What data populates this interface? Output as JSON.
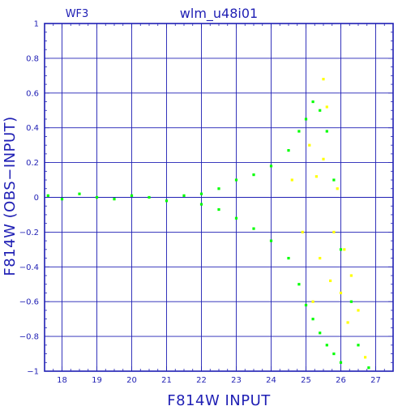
{
  "chart_data": {
    "type": "scatter",
    "title": "wlm_u48i01",
    "panel_label": "WF3",
    "xlabel": "F814W  INPUT",
    "ylabel": "F814W  (OBS−INPUT)",
    "xlim": [
      17.5,
      27.5
    ],
    "ylim": [
      -1,
      1
    ],
    "x_ticks": [
      18,
      19,
      20,
      21,
      22,
      23,
      24,
      25,
      26,
      27
    ],
    "y_ticks": [
      -1,
      -0.8,
      -0.6,
      -0.4,
      -0.2,
      0,
      0.2,
      0.4,
      0.6,
      0.8,
      1
    ],
    "y_tick_labels": [
      "−1",
      "−0.8",
      "−0.6",
      "−0.4",
      "−0.2",
      "0",
      "0.2",
      "0.4",
      "0.6",
      "0.8",
      "1"
    ],
    "grid": true,
    "series": [
      {
        "color": "#00ff00",
        "points": [
          [
            17.6,
            0.01
          ],
          [
            18.0,
            -0.01
          ],
          [
            18.5,
            0.02
          ],
          [
            19.0,
            0.0
          ],
          [
            19.5,
            -0.01
          ],
          [
            20.0,
            0.01
          ],
          [
            20.5,
            0.0
          ],
          [
            21.0,
            -0.02
          ],
          [
            21.5,
            0.01
          ],
          [
            22.0,
            0.02
          ],
          [
            22.0,
            -0.04
          ],
          [
            22.5,
            0.05
          ],
          [
            22.5,
            -0.07
          ],
          [
            23.0,
            0.1
          ],
          [
            23.0,
            -0.12
          ],
          [
            23.5,
            0.13
          ],
          [
            23.5,
            -0.18
          ],
          [
            24.0,
            0.18
          ],
          [
            24.0,
            -0.25
          ],
          [
            24.5,
            0.27
          ],
          [
            24.5,
            -0.35
          ],
          [
            24.8,
            0.38
          ],
          [
            24.8,
            -0.5
          ],
          [
            25.0,
            0.45
          ],
          [
            25.0,
            -0.62
          ],
          [
            25.2,
            0.55
          ],
          [
            25.2,
            -0.7
          ],
          [
            25.4,
            0.5
          ],
          [
            25.4,
            -0.78
          ],
          [
            25.6,
            0.38
          ],
          [
            25.6,
            -0.85
          ],
          [
            25.8,
            0.1
          ],
          [
            25.8,
            -0.9
          ],
          [
            26.0,
            -0.3
          ],
          [
            26.0,
            -0.95
          ],
          [
            26.3,
            -0.6
          ],
          [
            26.5,
            -0.85
          ],
          [
            26.8,
            -0.98
          ]
        ]
      },
      {
        "color": "#ffff00",
        "points": [
          [
            24.6,
            0.1
          ],
          [
            24.9,
            -0.2
          ],
          [
            25.1,
            0.3
          ],
          [
            25.3,
            0.12
          ],
          [
            25.4,
            -0.35
          ],
          [
            25.5,
            0.22
          ],
          [
            25.6,
            0.52
          ],
          [
            25.7,
            -0.48
          ],
          [
            25.8,
            -0.2
          ],
          [
            25.9,
            0.05
          ],
          [
            26.0,
            -0.55
          ],
          [
            26.1,
            -0.3
          ],
          [
            26.2,
            -0.72
          ],
          [
            26.3,
            -0.45
          ],
          [
            26.5,
            -0.65
          ],
          [
            26.7,
            -0.92
          ],
          [
            25.5,
            0.68
          ],
          [
            25.2,
            -0.6
          ]
        ]
      }
    ]
  }
}
